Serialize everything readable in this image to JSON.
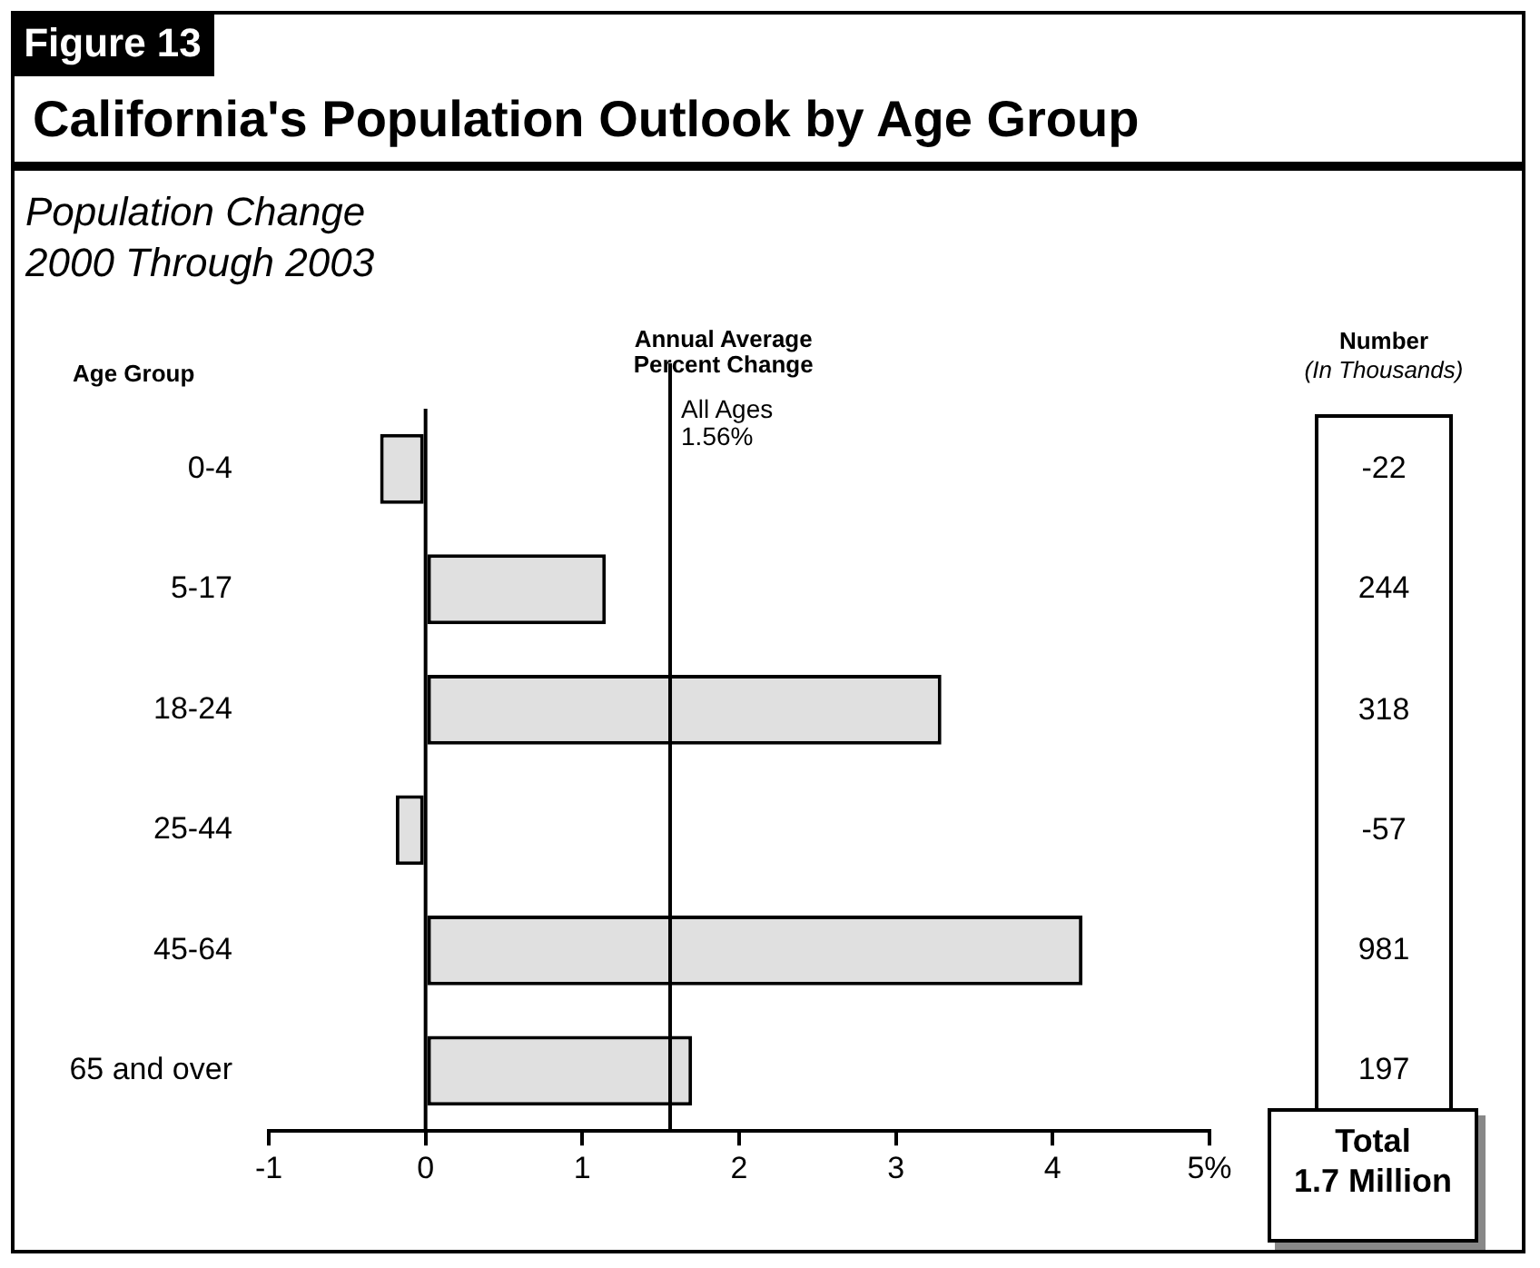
{
  "chart_data": {
    "type": "bar",
    "orientation": "horizontal",
    "title": "California's Population Outlook by Age Group",
    "subtitle": "Population Change 2000 Through 2003",
    "xlabel": "Annual Average Percent Change",
    "ylabel": "Age Group",
    "categories": [
      "0-4",
      "5-17",
      "18-24",
      "25-44",
      "45-64",
      "65 and over"
    ],
    "values": [
      -0.29,
      1.15,
      3.29,
      -0.19,
      4.19,
      1.7
    ],
    "color": "#e0e0e0",
    "xlim": [
      -1,
      5
    ],
    "xticks": [
      -1,
      0,
      1,
      2,
      3,
      4,
      {
        "value": 5,
        "label": "5%"
      }
    ],
    "ref_lines": [
      {
        "axis": "x",
        "value": 1.56,
        "label": "All Ages 1.56%",
        "color": "#000000"
      }
    ],
    "annotations": [
      "Figure 13",
      "Number",
      "(In Thousands)",
      "-22",
      "244",
      "318",
      "-57",
      "981",
      "197",
      "Total 1.7 Million"
    ],
    "legend": false
  }
}
